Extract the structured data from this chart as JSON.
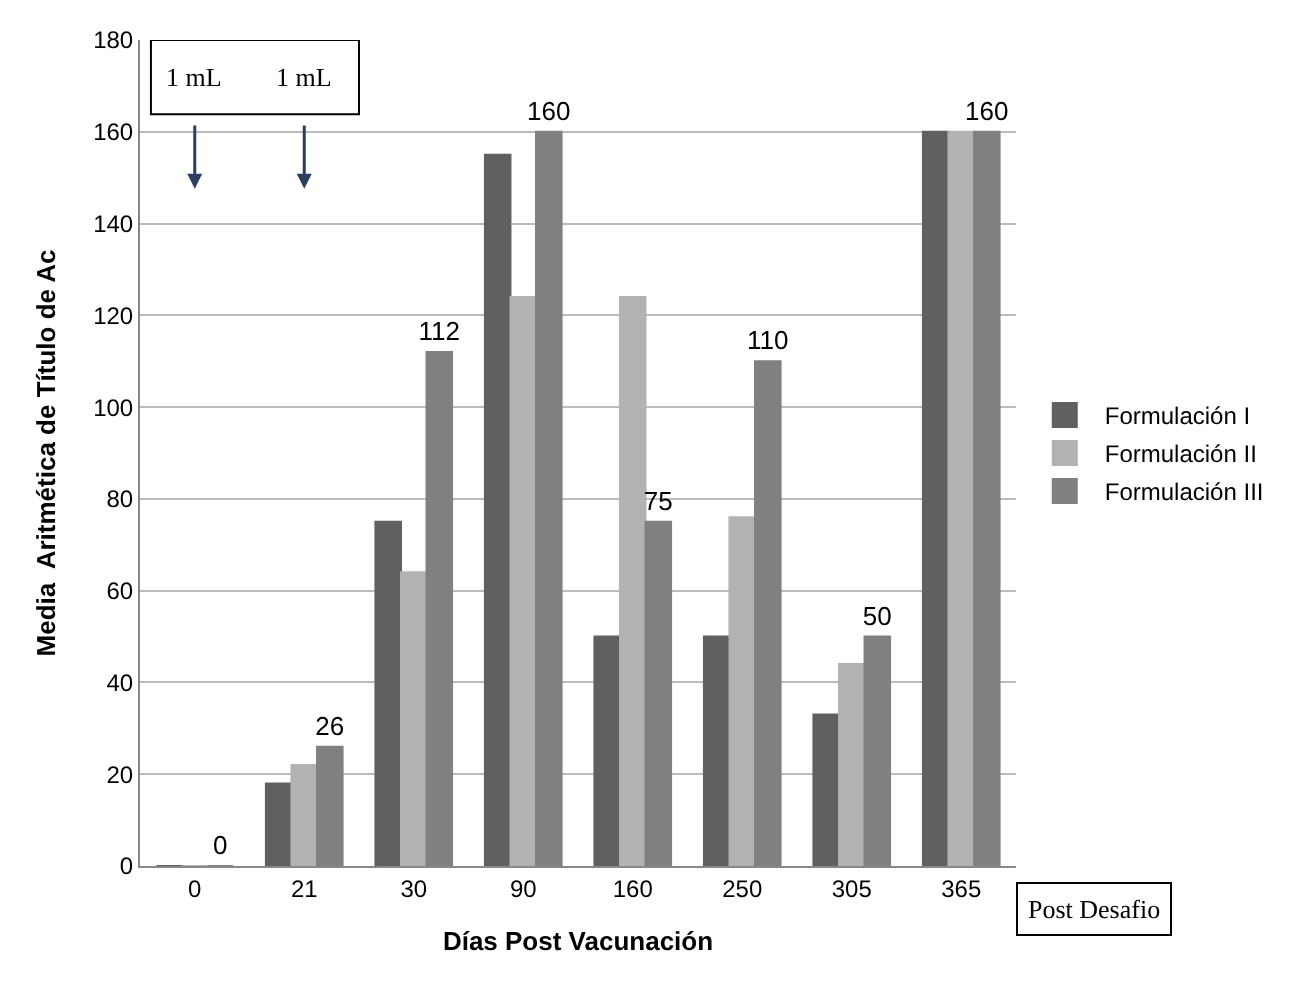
{
  "chart_data": {
    "type": "bar",
    "xlabel": "Días Post Vacunación",
    "ylabel": "Media  Aritmética de Título de Ac",
    "categories": [
      "0",
      "21",
      "30",
      "90",
      "160",
      "250",
      "305",
      "365"
    ],
    "series": [
      {
        "name": "Formulación I",
        "color": "#606060",
        "values": [
          0,
          18,
          75,
          155,
          50,
          50,
          33,
          160
        ]
      },
      {
        "name": "Formulación II",
        "color": "#b2b2b2",
        "values": [
          0,
          22,
          64,
          124,
          124,
          76,
          44,
          160
        ]
      },
      {
        "name": "Formulación III",
        "color": "#808080",
        "values": [
          0,
          26,
          112,
          160,
          75,
          110,
          50,
          160
        ],
        "value_labels": [
          "0",
          "26",
          "112",
          "160",
          "75",
          "110",
          "50",
          "160"
        ]
      }
    ],
    "ylim": [
      0,
      180
    ],
    "yticks": [
      0,
      20,
      40,
      60,
      80,
      100,
      120,
      140,
      160,
      180
    ],
    "grid": "y",
    "legend": "right",
    "annotations": [
      "1 mL",
      "1 mL",
      "Post Desafio"
    ]
  }
}
